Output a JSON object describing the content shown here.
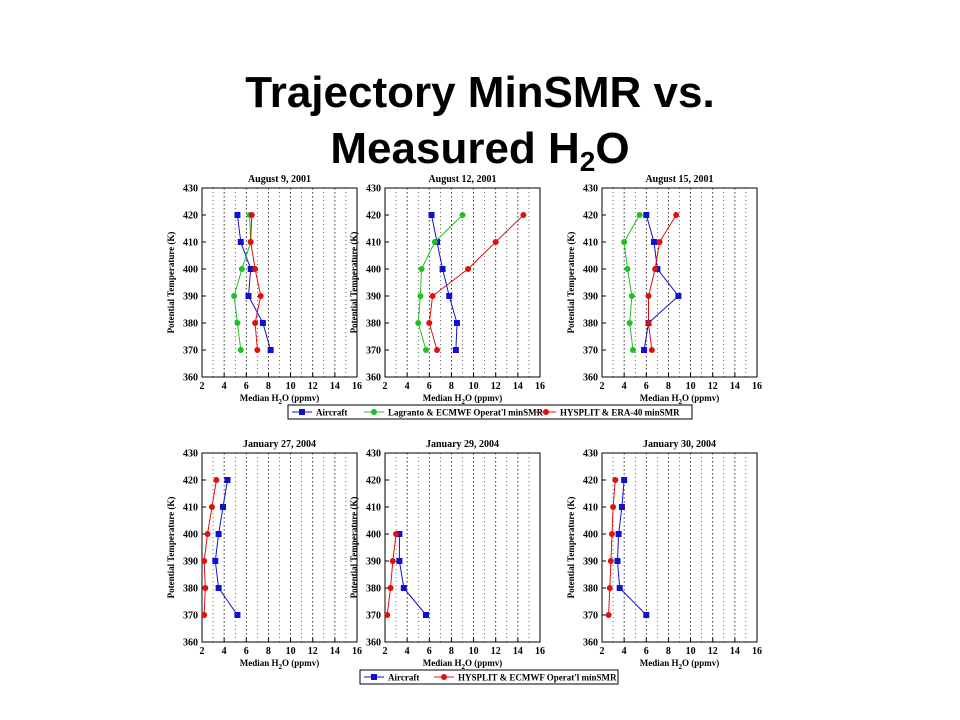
{
  "slide": {
    "title_line1": "Trajectory MinSMR vs.",
    "title_line2_pre": "Measured H",
    "title_line2_sub": "2",
    "title_line2_post": "O"
  },
  "colors": {
    "Aircraft": "#1010d0",
    "Lagranto": "#20c020",
    "HYSPLIT": "#e01010"
  },
  "legends": [
    [
      "Aircraft",
      "Lagranto & ECMWF Operat'l minSMR",
      "HYSPLIT & ERA-40 minSMR"
    ],
    [
      "Aircraft",
      "HYSPLIT & ECMWF Operat'l minSMR"
    ]
  ],
  "chart_data": [
    {
      "type": "line",
      "title": "August 9, 2001",
      "xlabel": "Median H2O (ppmv)",
      "ylabel": "Potential Temperature (K)",
      "xlim": [
        2,
        16
      ],
      "ylim": [
        360,
        430
      ],
      "xticks": [
        2,
        4,
        6,
        8,
        10,
        12,
        14,
        16
      ],
      "yticks": [
        360,
        370,
        380,
        390,
        400,
        410,
        420,
        430
      ],
      "grid": "x-dotted",
      "series": [
        {
          "name": "Aircraft",
          "x": [
            5.2,
            5.5,
            6.4,
            6.2,
            7.5,
            8.2
          ],
          "y": [
            420,
            410,
            400,
            390,
            380,
            370
          ]
        },
        {
          "name": "Lagranto & ECMWF Operat'l minSMR",
          "x": [
            6.3,
            6.4,
            5.6,
            4.9,
            5.2,
            5.5
          ],
          "y": [
            420,
            410,
            400,
            390,
            380,
            370
          ]
        },
        {
          "name": "HYSPLIT & ERA-40 minSMR",
          "x": [
            6.5,
            6.4,
            6.8,
            7.3,
            6.8,
            7.0
          ],
          "y": [
            420,
            410,
            400,
            390,
            380,
            370
          ]
        }
      ]
    },
    {
      "type": "line",
      "title": "August 12, 2001",
      "xlabel": "Median H2O (ppmv)",
      "ylabel": "Potential Temperature (K)",
      "xlim": [
        2,
        16
      ],
      "ylim": [
        360,
        430
      ],
      "xticks": [
        2,
        4,
        6,
        8,
        10,
        12,
        14,
        16
      ],
      "yticks": [
        360,
        370,
        380,
        390,
        400,
        410,
        420,
        430
      ],
      "grid": "x-dotted",
      "series": [
        {
          "name": "Aircraft",
          "x": [
            6.2,
            6.7,
            7.2,
            7.8,
            8.5,
            8.4
          ],
          "y": [
            420,
            410,
            400,
            390,
            380,
            370
          ]
        },
        {
          "name": "Lagranto & ECMWF Operat'l minSMR",
          "x": [
            9.0,
            6.5,
            5.3,
            5.2,
            5.0,
            5.7
          ],
          "y": [
            420,
            410,
            400,
            390,
            380,
            370
          ]
        },
        {
          "name": "HYSPLIT & ERA-40 minSMR",
          "x": [
            14.5,
            12.0,
            9.5,
            6.3,
            6.0,
            6.7
          ],
          "y": [
            420,
            410,
            400,
            390,
            380,
            370
          ]
        }
      ]
    },
    {
      "type": "line",
      "title": "August 15, 2001",
      "xlabel": "Median H2O (ppmv)",
      "ylabel": "Potential Temperature (K)",
      "xlim": [
        2,
        16
      ],
      "ylim": [
        360,
        430
      ],
      "xticks": [
        2,
        4,
        6,
        8,
        10,
        12,
        14,
        16
      ],
      "yticks": [
        360,
        370,
        380,
        390,
        400,
        410,
        420,
        430
      ],
      "grid": "x-dotted",
      "series": [
        {
          "name": "Aircraft",
          "x": [
            6.0,
            6.7,
            7.0,
            8.9,
            6.2,
            5.8
          ],
          "y": [
            420,
            410,
            400,
            390,
            380,
            370
          ]
        },
        {
          "name": "Lagranto & ECMWF Operat'l minSMR",
          "x": [
            5.4,
            4.0,
            4.3,
            4.7,
            4.5,
            4.8
          ],
          "y": [
            420,
            410,
            400,
            390,
            380,
            370
          ]
        },
        {
          "name": "HYSPLIT & ERA-40 minSMR",
          "x": [
            8.7,
            7.2,
            6.8,
            6.2,
            6.2,
            6.5
          ],
          "y": [
            420,
            410,
            400,
            390,
            380,
            370
          ]
        }
      ]
    },
    {
      "type": "line",
      "title": "January 27, 2004",
      "xlabel": "Median H2O (ppmv)",
      "ylabel": "Potential Temperature (K)",
      "xlim": [
        2,
        16
      ],
      "ylim": [
        360,
        430
      ],
      "xticks": [
        2,
        4,
        6,
        8,
        10,
        12,
        14,
        16
      ],
      "yticks": [
        360,
        370,
        380,
        390,
        400,
        410,
        420,
        430
      ],
      "grid": "x-dotted",
      "series": [
        {
          "name": "Aircraft",
          "x": [
            4.3,
            3.9,
            3.5,
            3.2,
            3.5,
            5.2
          ],
          "y": [
            420,
            410,
            400,
            390,
            380,
            370
          ]
        },
        {
          "name": "HYSPLIT & ECMWF Operat'l minSMR",
          "x": [
            3.3,
            2.9,
            2.5,
            2.2,
            2.3,
            2.2
          ],
          "y": [
            420,
            410,
            400,
            390,
            380,
            370
          ]
        }
      ]
    },
    {
      "type": "line",
      "title": "January 29, 2004",
      "xlabel": "Median H2O (ppmv)",
      "ylabel": "Potential Temperature (K)",
      "xlim": [
        2,
        16
      ],
      "ylim": [
        360,
        430
      ],
      "xticks": [
        2,
        4,
        6,
        8,
        10,
        12,
        14,
        16
      ],
      "yticks": [
        360,
        370,
        380,
        390,
        400,
        410,
        420,
        430
      ],
      "grid": "x-dotted",
      "series": [
        {
          "name": "Aircraft",
          "x": [
            3.3,
            null,
            null,
            3.3,
            3.7,
            5.7
          ],
          "y": [
            400,
            null,
            null,
            390,
            380,
            370
          ]
        },
        {
          "name": "HYSPLIT & ECMWF Operat'l minSMR",
          "x": [
            3.0,
            2.7,
            2.5,
            2.2
          ],
          "y": [
            400,
            390,
            380,
            370
          ]
        }
      ]
    },
    {
      "type": "line",
      "title": "January 30, 2004",
      "xlabel": "Median H2O (ppmv)",
      "ylabel": "Potential Temperature (K)",
      "xlim": [
        2,
        16
      ],
      "ylim": [
        360,
        430
      ],
      "xticks": [
        2,
        4,
        6,
        8,
        10,
        12,
        14,
        16
      ],
      "yticks": [
        360,
        370,
        380,
        390,
        400,
        410,
        420,
        430
      ],
      "grid": "x-dotted",
      "series": [
        {
          "name": "Aircraft",
          "x": [
            4.0,
            3.8,
            3.5,
            3.4,
            3.6,
            6.0
          ],
          "y": [
            420,
            410,
            400,
            390,
            380,
            370
          ]
        },
        {
          "name": "HYSPLIT & ECMWF Operat'l minSMR",
          "x": [
            3.2,
            3.0,
            2.9,
            2.8,
            2.7,
            2.6
          ],
          "y": [
            420,
            410,
            400,
            390,
            380,
            370
          ]
        }
      ]
    }
  ]
}
